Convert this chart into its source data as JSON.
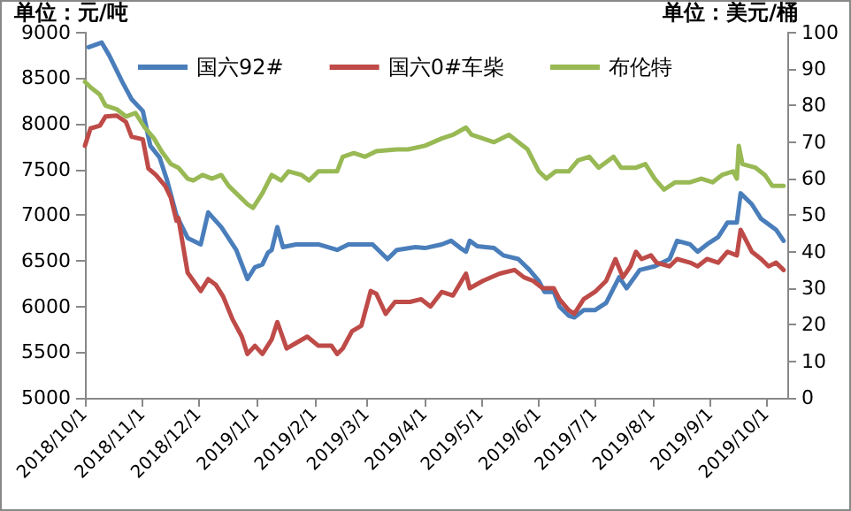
{
  "chart_data": {
    "type": "line",
    "ylabel": "单位：元/吨",
    "y2label": "单位：美元/桶",
    "xlim": [
      "2018-10-01",
      "2019-10-12"
    ],
    "xticks": [
      {
        "value": "2018-10-01",
        "label": "2018/10/1"
      },
      {
        "value": "2018-11-01",
        "label": "2018/11/1"
      },
      {
        "value": "2018-12-01",
        "label": "2018/12/1"
      },
      {
        "value": "2019-01-01",
        "label": "2019/1/1"
      },
      {
        "value": "2019-02-01",
        "label": "2019/2/1"
      },
      {
        "value": "2019-03-01",
        "label": "2019/3/1"
      },
      {
        "value": "2019-04-01",
        "label": "2019/4/1"
      },
      {
        "value": "2019-05-01",
        "label": "2019/5/1"
      },
      {
        "value": "2019-06-01",
        "label": "2019/6/1"
      },
      {
        "value": "2019-07-01",
        "label": "2019/7/1"
      },
      {
        "value": "2019-08-01",
        "label": "2019/8/1"
      },
      {
        "value": "2019-09-01",
        "label": "2019/9/1"
      },
      {
        "value": "2019-10-01",
        "label": "2019/10/1"
      }
    ],
    "ylim": [
      5000,
      9000
    ],
    "yticks": [
      5000,
      5500,
      6000,
      6500,
      7000,
      7500,
      8000,
      8500,
      9000
    ],
    "y2lim": [
      0,
      100
    ],
    "y2ticks": [
      0,
      10,
      20,
      30,
      40,
      50,
      60,
      70,
      80,
      90,
      100
    ],
    "legend": "top",
    "grid": false,
    "marker": "none",
    "line_style": "solid",
    "series": [
      {
        "name": "国六92#",
        "color": "#4a7ebb",
        "x": [
          "2018-10-03",
          "2018-10-10",
          "2018-10-14",
          "2018-10-21",
          "2018-10-26",
          "2018-11-01",
          "2018-11-05",
          "2018-11-10",
          "2018-11-14",
          "2018-11-19",
          "2018-11-25",
          "2018-12-02",
          "2018-12-06",
          "2018-12-13",
          "2018-12-21",
          "2018-12-27",
          "2018-12-31",
          "2019-01-04",
          "2019-01-07",
          "2019-01-09",
          "2019-01-12",
          "2019-01-15",
          "2019-01-22",
          "2019-02-03",
          "2019-02-13",
          "2019-02-19",
          "2019-03-04",
          "2019-03-12",
          "2019-03-17",
          "2019-03-27",
          "2019-04-01",
          "2019-04-10",
          "2019-04-15",
          "2019-04-20",
          "2019-04-23",
          "2019-04-25",
          "2019-04-29",
          "2019-05-08",
          "2019-05-13",
          "2019-05-21",
          "2019-05-27",
          "2019-06-01",
          "2019-06-04",
          "2019-06-09",
          "2019-06-12",
          "2019-06-17",
          "2019-06-20",
          "2019-06-25",
          "2019-07-01",
          "2019-07-07",
          "2019-07-14",
          "2019-07-18",
          "2019-07-25",
          "2019-08-02",
          "2019-08-10",
          "2019-08-14",
          "2019-08-21",
          "2019-08-25",
          "2019-08-30",
          "2019-09-05",
          "2019-09-10",
          "2019-09-15",
          "2019-09-17",
          "2019-09-23",
          "2019-09-28",
          "2019-10-06",
          "2019-10-10"
        ],
        "values": [
          8840,
          8890,
          8750,
          8460,
          8270,
          8140,
          7760,
          7630,
          7380,
          7000,
          6750,
          6680,
          7030,
          6870,
          6620,
          6300,
          6430,
          6460,
          6590,
          6620,
          6870,
          6650,
          6680,
          6680,
          6620,
          6680,
          6680,
          6520,
          6620,
          6650,
          6640,
          6680,
          6720,
          6640,
          6600,
          6720,
          6660,
          6640,
          6560,
          6520,
          6400,
          6280,
          6160,
          6160,
          6000,
          5900,
          5880,
          5960,
          5960,
          6040,
          6320,
          6200,
          6400,
          6440,
          6520,
          6720,
          6680,
          6600,
          6680,
          6760,
          6920,
          6920,
          7240,
          7120,
          6960,
          6840,
          6720
        ]
      },
      {
        "name": "国六0#车柴",
        "color": "#be4b48",
        "x": [
          "2018-10-01",
          "2018-10-04",
          "2018-10-09",
          "2018-10-12",
          "2018-10-18",
          "2018-10-23",
          "2018-10-26",
          "2018-11-01",
          "2018-11-04",
          "2018-11-08",
          "2018-11-13",
          "2018-11-16",
          "2018-11-19",
          "2018-11-20",
          "2018-11-25",
          "2018-12-02",
          "2018-12-06",
          "2018-12-10",
          "2018-12-14",
          "2018-12-19",
          "2018-12-24",
          "2018-12-27",
          "2018-12-31",
          "2019-01-04",
          "2019-01-09",
          "2019-01-12",
          "2019-01-17",
          "2019-01-22",
          "2019-01-28",
          "2019-02-03",
          "2019-02-10",
          "2019-02-13",
          "2019-02-16",
          "2019-02-21",
          "2019-02-26",
          "2019-03-03",
          "2019-03-06",
          "2019-03-11",
          "2019-03-16",
          "2019-03-24",
          "2019-03-30",
          "2019-04-04",
          "2019-04-10",
          "2019-04-16",
          "2019-04-23",
          "2019-04-25",
          "2019-05-02",
          "2019-05-11",
          "2019-05-19",
          "2019-05-24",
          "2019-05-29",
          "2019-06-03",
          "2019-06-09",
          "2019-06-12",
          "2019-06-17",
          "2019-06-20",
          "2019-06-25",
          "2019-07-01",
          "2019-07-07",
          "2019-07-12",
          "2019-07-16",
          "2019-07-20",
          "2019-07-23",
          "2019-07-26",
          "2019-07-31",
          "2019-08-03",
          "2019-08-10",
          "2019-08-14",
          "2019-08-21",
          "2019-08-25",
          "2019-08-30",
          "2019-09-05",
          "2019-09-10",
          "2019-09-15",
          "2019-09-17",
          "2019-09-23",
          "2019-09-28",
          "2019-10-02",
          "2019-10-06",
          "2019-10-10"
        ],
        "values": [
          7760,
          7950,
          7980,
          8080,
          8090,
          8020,
          7860,
          7830,
          7510,
          7440,
          7320,
          7190,
          6940,
          6970,
          6370,
          6170,
          6300,
          6240,
          6110,
          5860,
          5670,
          5480,
          5570,
          5480,
          5640,
          5830,
          5540,
          5600,
          5670,
          5570,
          5570,
          5480,
          5540,
          5730,
          5790,
          6170,
          6140,
          5920,
          6050,
          6050,
          6080,
          6000,
          6160,
          6120,
          6360,
          6200,
          6280,
          6360,
          6400,
          6320,
          6280,
          6200,
          6200,
          6080,
          5960,
          5920,
          6080,
          6160,
          6280,
          6520,
          6320,
          6440,
          6600,
          6520,
          6560,
          6480,
          6440,
          6520,
          6480,
          6440,
          6520,
          6480,
          6600,
          6560,
          6840,
          6600,
          6520,
          6440,
          6480,
          6400
        ]
      },
      {
        "name": "布伦特",
        "color": "#98b954",
        "axis": "y2",
        "x": [
          "2018-10-01",
          "2018-10-04",
          "2018-10-09",
          "2018-10-12",
          "2018-10-18",
          "2018-10-23",
          "2018-10-28",
          "2018-11-02",
          "2018-11-07",
          "2018-11-11",
          "2018-11-16",
          "2018-11-20",
          "2018-11-25",
          "2018-11-28",
          "2018-12-03",
          "2018-12-08",
          "2018-12-13",
          "2018-12-17",
          "2018-12-21",
          "2018-12-27",
          "2018-12-30",
          "2019-01-04",
          "2019-01-09",
          "2019-01-14",
          "2019-01-18",
          "2019-01-25",
          "2019-01-29",
          "2019-02-03",
          "2019-02-13",
          "2019-02-16",
          "2019-02-22",
          "2019-02-28",
          "2019-03-06",
          "2019-03-17",
          "2019-03-23",
          "2019-04-01",
          "2019-04-10",
          "2019-04-16",
          "2019-04-23",
          "2019-04-26",
          "2019-05-02",
          "2019-05-08",
          "2019-05-16",
          "2019-05-21",
          "2019-05-26",
          "2019-06-01",
          "2019-06-05",
          "2019-06-10",
          "2019-06-17",
          "2019-06-22",
          "2019-06-28",
          "2019-07-03",
          "2019-07-11",
          "2019-07-15",
          "2019-07-23",
          "2019-07-28",
          "2019-08-02",
          "2019-08-07",
          "2019-08-13",
          "2019-08-21",
          "2019-08-27",
          "2019-09-02",
          "2019-09-07",
          "2019-09-13",
          "2019-09-15",
          "2019-09-16",
          "2019-09-18",
          "2019-09-25",
          "2019-09-30",
          "2019-10-04",
          "2019-10-10"
        ],
        "values": [
          86.5,
          85,
          83,
          80,
          79,
          77,
          78,
          74,
          71,
          67.5,
          64,
          63,
          60,
          59.5,
          61,
          60,
          61,
          58,
          56,
          53,
          52,
          56,
          61,
          59.5,
          62,
          61,
          59.5,
          62,
          62,
          66,
          67,
          66,
          67.5,
          68,
          68,
          69,
          71,
          72,
          74,
          72,
          71,
          70,
          72,
          70,
          68,
          62,
          60,
          62,
          62,
          65,
          66,
          63,
          66,
          63,
          63,
          64,
          60,
          57,
          59,
          59,
          60,
          59,
          61,
          62,
          60,
          69,
          64,
          63,
          61,
          58,
          58
        ]
      }
    ]
  }
}
